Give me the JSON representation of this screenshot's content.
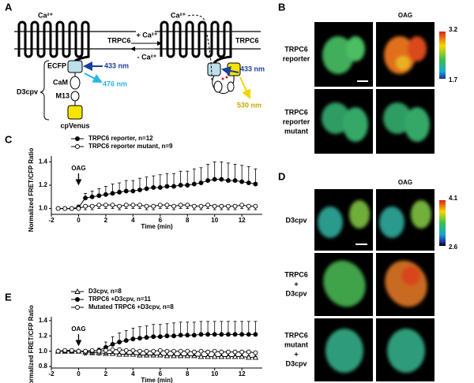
{
  "panel_letters": [
    "A",
    "B",
    "C",
    "D",
    "E"
  ],
  "diagram": {
    "ca_left": "Ca²⁺",
    "ca_right": "Ca²⁺",
    "plus_ca": "+ Ca²⁺",
    "minus_ca": "- Ca²⁺",
    "trpc6_left": "TRPC6",
    "trpc6_right": "TRPC6",
    "ecfp": "ECFP",
    "cam": "CaM",
    "m13": "M13",
    "cpvenus": "cpVenus",
    "d3cpv": "D3cpv",
    "ex_left": "433 nm",
    "em_cfp": "476 nm",
    "ex_right": "433 nm",
    "em_yfp": "530 nm"
  },
  "images_b": {
    "column_title": "OAG",
    "scale_max": "3.2",
    "scale_min": "1.7",
    "rows": [
      {
        "label": [
          "TRPC6",
          "reporter"
        ]
      },
      {
        "label": [
          "TRPC6",
          "reporter",
          "mutant"
        ]
      }
    ]
  },
  "images_d": {
    "column_title": "OAG",
    "scale_max": "4.1",
    "scale_min": "2.6",
    "rows": [
      {
        "label": [
          "D3cpv"
        ]
      },
      {
        "label": [
          "TRPC6",
          "+",
          "D3cpv"
        ]
      },
      {
        "label": [
          "TRPC6",
          "mutant",
          "+",
          "D3cpv"
        ]
      }
    ]
  },
  "chart_data": [
    {
      "type": "line",
      "xlabel": "Time (min)",
      "ylabel": "Normalized FRET/CFP Ratio",
      "legend": "top-left",
      "annotation": {
        "text": "OAG",
        "x": 0
      },
      "x": [
        -1.5,
        -1,
        -0.5,
        0,
        0.5,
        1,
        1.5,
        2,
        2.5,
        3,
        3.5,
        4,
        4.5,
        5,
        5.5,
        6,
        6.5,
        7,
        7.5,
        8,
        8.5,
        9,
        9.5,
        10,
        10.5,
        11,
        11.5,
        12,
        12.5,
        13
      ],
      "xlim": [
        -2,
        13.5
      ],
      "xticks": [
        -2,
        0,
        2,
        4,
        6,
        8,
        10,
        12
      ],
      "ylim": [
        0.95,
        1.45
      ],
      "yticks": [
        {
          "value": 1,
          "label": "1.0"
        },
        1.2,
        1.4
      ],
      "series": [
        {
          "name": "TRPC6 reporter, n=12",
          "color": "#000000",
          "marker": "circle",
          "marker_fill": "#000000",
          "error_direction": "up",
          "values": [
            1.0,
            1.0,
            1.0,
            1.01,
            1.09,
            1.1,
            1.11,
            1.12,
            1.13,
            1.14,
            1.15,
            1.15,
            1.16,
            1.17,
            1.18,
            1.18,
            1.19,
            1.19,
            1.2,
            1.2,
            1.21,
            1.22,
            1.24,
            1.25,
            1.25,
            1.24,
            1.24,
            1.23,
            1.22,
            1.21
          ],
          "errors": [
            0.01,
            0.01,
            0.01,
            0.02,
            0.04,
            0.05,
            0.06,
            0.07,
            0.08,
            0.08,
            0.09,
            0.09,
            0.1,
            0.1,
            0.1,
            0.11,
            0.11,
            0.11,
            0.12,
            0.12,
            0.13,
            0.13,
            0.14,
            0.15,
            0.15,
            0.15,
            0.14,
            0.14,
            0.14,
            0.13
          ]
        },
        {
          "name": "TRPC6 reporter mutant, n=9",
          "color": "#000000",
          "marker": "circle",
          "marker_fill": "#ffffff",
          "error_direction": "down",
          "values": [
            1.0,
            1.0,
            1.0,
            1.0,
            1.02,
            1.02,
            1.03,
            1.03,
            1.03,
            1.02,
            1.03,
            1.03,
            1.03,
            1.02,
            1.02,
            1.03,
            1.03,
            1.02,
            1.03,
            1.03,
            1.02,
            1.02,
            1.03,
            1.02,
            1.02,
            1.02,
            1.02,
            1.03,
            1.02,
            1.02
          ],
          "errors": [
            0.01,
            0.01,
            0.01,
            0.01,
            0.03,
            0.03,
            0.03,
            0.03,
            0.03,
            0.03,
            0.03,
            0.03,
            0.03,
            0.03,
            0.03,
            0.03,
            0.03,
            0.03,
            0.03,
            0.03,
            0.03,
            0.03,
            0.03,
            0.03,
            0.03,
            0.03,
            0.03,
            0.03,
            0.03,
            0.03
          ]
        }
      ]
    },
    {
      "type": "line",
      "xlabel": "Time (min)",
      "ylabel": "Normalized FRET/CFP Ratio",
      "legend": "top-left",
      "annotation": {
        "text": "OAG",
        "x": 0
      },
      "x": [
        -1.5,
        -1,
        -0.5,
        0,
        0.5,
        1,
        1.5,
        2,
        2.5,
        3,
        3.5,
        4,
        4.5,
        5,
        5.5,
        6,
        6.5,
        7,
        7.5,
        8,
        8.5,
        9,
        9.5,
        10,
        10.5,
        11,
        11.5,
        12,
        12.5,
        13
      ],
      "xlim": [
        -2,
        13.5
      ],
      "xticks": [
        -2,
        0,
        2,
        4,
        6,
        8,
        10,
        12
      ],
      "ylim": [
        0.78,
        1.45
      ],
      "yticks": [
        0.8,
        {
          "value": 1,
          "label": "1.0"
        },
        1.2,
        1.4
      ],
      "series": [
        {
          "name": "D3cpv, n=8",
          "color": "#000000",
          "marker": "triangle",
          "marker_fill": "#ffffff",
          "error_direction": "down",
          "values": [
            1.0,
            1.0,
            1.0,
            1.0,
            0.99,
            0.98,
            0.98,
            0.97,
            0.97,
            0.96,
            0.96,
            0.96,
            0.95,
            0.95,
            0.95,
            0.95,
            0.94,
            0.94,
            0.94,
            0.94,
            0.94,
            0.93,
            0.93,
            0.93,
            0.93,
            0.93,
            0.93,
            0.93,
            0.92,
            0.92
          ],
          "errors": [
            0.01,
            0.01,
            0.01,
            0.01,
            0.02,
            0.02,
            0.02,
            0.02,
            0.02,
            0.02,
            0.02,
            0.02,
            0.02,
            0.02,
            0.02,
            0.02,
            0.02,
            0.02,
            0.02,
            0.02,
            0.02,
            0.02,
            0.02,
            0.02,
            0.02,
            0.02,
            0.02,
            0.02,
            0.02,
            0.02
          ]
        },
        {
          "name": "TRPC6 +D3cpv, n=11",
          "color": "#000000",
          "marker": "circle",
          "marker_fill": "#000000",
          "error_direction": "up",
          "values": [
            1.0,
            1.0,
            1.0,
            1.0,
            1.0,
            1.0,
            1.01,
            1.05,
            1.09,
            1.12,
            1.14,
            1.16,
            1.17,
            1.18,
            1.19,
            1.19,
            1.2,
            1.2,
            1.21,
            1.21,
            1.21,
            1.22,
            1.22,
            1.22,
            1.22,
            1.22,
            1.22,
            1.22,
            1.22,
            1.22
          ],
          "errors": [
            0.01,
            0.01,
            0.01,
            0.01,
            0.01,
            0.02,
            0.03,
            0.07,
            0.1,
            0.12,
            0.13,
            0.14,
            0.15,
            0.15,
            0.16,
            0.16,
            0.16,
            0.17,
            0.17,
            0.17,
            0.17,
            0.17,
            0.17,
            0.17,
            0.17,
            0.17,
            0.17,
            0.17,
            0.17,
            0.17
          ]
        },
        {
          "name": "Mutated TRPC6 +D3cpv, n=8",
          "color": "#000000",
          "marker": "circle",
          "marker_fill": "#ffffff",
          "error_direction": "down",
          "values": [
            1.0,
            1.01,
            1.01,
            1.0,
            1.0,
            1.01,
            1.0,
            1.01,
            1.02,
            1.02,
            1.01,
            1.01,
            1.0,
            1.0,
            1.0,
            1.01,
            1.0,
            1.0,
            1.0,
            1.0,
            0.99,
            1.0,
            0.99,
            1.0,
            0.99,
            0.99,
            0.99,
            0.99,
            0.99,
            0.98
          ],
          "errors": [
            0.02,
            0.02,
            0.02,
            0.02,
            0.05,
            0.05,
            0.05,
            0.05,
            0.05,
            0.05,
            0.05,
            0.05,
            0.05,
            0.05,
            0.05,
            0.05,
            0.05,
            0.05,
            0.05,
            0.05,
            0.05,
            0.05,
            0.05,
            0.05,
            0.05,
            0.05,
            0.05,
            0.05,
            0.05,
            0.05
          ]
        }
      ]
    }
  ]
}
